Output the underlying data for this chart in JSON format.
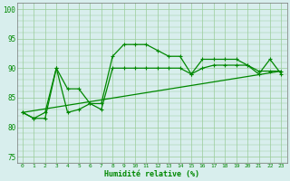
{
  "xlabel": "Humidité relative (%)",
  "xlim": [
    -0.5,
    23.5
  ],
  "ylim": [
    74,
    101
  ],
  "yticks": [
    75,
    80,
    85,
    90,
    95,
    100
  ],
  "xtick_labels": [
    "0",
    "1",
    "2",
    "3",
    "4",
    "5",
    "6",
    "7",
    "8",
    "9",
    "10",
    "11",
    "12",
    "13",
    "14",
    "15",
    "16",
    "17",
    "18",
    "19",
    "20",
    "21",
    "22",
    "23"
  ],
  "bg_color": "#d8eeed",
  "grid_color": "#99cc99",
  "line_color": "#008800",
  "series1_x": [
    0,
    1,
    2,
    3,
    4,
    5,
    6,
    7,
    8,
    9,
    10,
    11,
    12,
    13,
    14,
    15,
    16,
    17,
    18,
    19,
    20,
    21,
    22,
    23
  ],
  "series1_y": [
    82.5,
    81.5,
    81.5,
    90.0,
    86.5,
    86.5,
    84.0,
    84.0,
    92.0,
    94.0,
    94.0,
    94.0,
    93.0,
    92.0,
    92.0,
    89.0,
    91.5,
    91.5,
    91.5,
    91.5,
    90.5,
    89.0,
    91.5,
    89.0
  ],
  "series2_x": [
    0,
    1,
    2,
    3,
    4,
    5,
    6,
    7,
    8,
    9,
    10,
    11,
    12,
    13,
    14,
    15,
    16,
    17,
    18,
    19,
    20,
    21,
    22,
    23
  ],
  "series2_y": [
    82.5,
    81.5,
    82.5,
    90.0,
    82.5,
    83.0,
    84.0,
    83.0,
    90.0,
    90.0,
    90.0,
    90.0,
    90.0,
    90.0,
    90.0,
    89.0,
    90.0,
    90.5,
    90.5,
    90.5,
    90.5,
    89.5,
    89.5,
    89.5
  ],
  "series3_x": [
    0,
    23
  ],
  "series3_y": [
    82.5,
    89.5
  ]
}
